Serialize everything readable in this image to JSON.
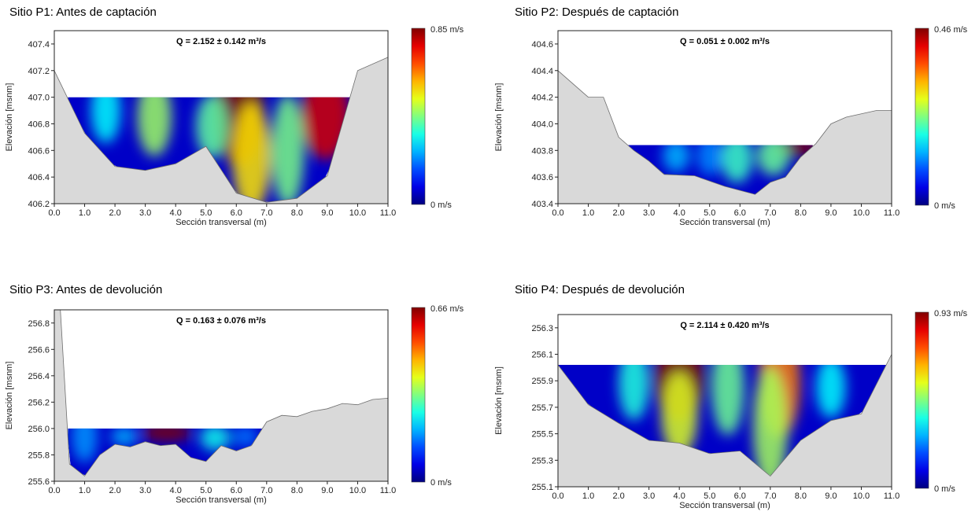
{
  "chart_data": [
    {
      "type": "heatmap",
      "title": "Sitio P1: Antes de captación",
      "discharge_label": "Q = 2.152 ± 0.142 m³/s",
      "xlabel": "Sección transversal (m)",
      "ylabel": "Elevación [msnm]",
      "xlim": [
        0,
        11
      ],
      "ylim": [
        406.2,
        407.5
      ],
      "xticks": [
        "0.0",
        "1.0",
        "2.0",
        "3.0",
        "4.0",
        "5.0",
        "6.0",
        "7.0",
        "8.0",
        "9.0",
        "10.0",
        "11.0"
      ],
      "yticks": [
        "406.2",
        "406.4",
        "406.6",
        "406.8",
        "407.0",
        "407.2",
        "407.4"
      ],
      "water_surface": 407.0,
      "wet_x_range": [
        0.45,
        9.75
      ],
      "bed_profile": [
        [
          0,
          407.2
        ],
        [
          1,
          406.73
        ],
        [
          2,
          406.48
        ],
        [
          3,
          406.45
        ],
        [
          4,
          406.5
        ],
        [
          5,
          406.63
        ],
        [
          6,
          406.28
        ],
        [
          7,
          406.21
        ],
        [
          8,
          406.24
        ],
        [
          9,
          406.41
        ],
        [
          10,
          407.2
        ],
        [
          11,
          407.3
        ]
      ],
      "velocity_max": 0.85,
      "velocity_max_label": "0.85 m/s",
      "velocity_min_label": "0 m/s",
      "velocity_hotspots": [
        [
          6.1,
          406.88,
          0.85
        ],
        [
          8.95,
          406.86,
          0.78
        ],
        [
          3.3,
          406.85,
          0.45
        ],
        [
          1.7,
          406.9,
          0.32
        ],
        [
          6.5,
          406.55,
          0.55
        ],
        [
          7.7,
          406.6,
          0.42
        ],
        [
          5.2,
          406.78,
          0.4
        ]
      ]
    },
    {
      "type": "heatmap",
      "title": "Sitio P2: Después de captación",
      "discharge_label": "Q = 0.051 ± 0.002 m³/s",
      "xlabel": "Sección transversal (m)",
      "ylabel": "Elevación [msnm]",
      "xlim": [
        0,
        11
      ],
      "ylim": [
        403.4,
        404.7
      ],
      "xticks": [
        "0.0",
        "1.0",
        "2.0",
        "3.0",
        "4.0",
        "5.0",
        "6.0",
        "7.0",
        "8.0",
        "9.0",
        "10.0",
        "11.0"
      ],
      "yticks": [
        "403.4",
        "403.6",
        "403.8",
        "404.0",
        "404.2",
        "404.4",
        "404.6"
      ],
      "water_surface": 403.84,
      "wet_x_range": [
        2.3,
        8.4
      ],
      "bed_profile": [
        [
          0,
          404.4
        ],
        [
          1,
          404.2
        ],
        [
          1.5,
          404.2
        ],
        [
          2,
          403.9
        ],
        [
          2.5,
          403.8
        ],
        [
          3,
          403.72
        ],
        [
          3.5,
          403.62
        ],
        [
          4.5,
          403.61
        ],
        [
          5.5,
          403.53
        ],
        [
          6.5,
          403.47
        ],
        [
          7,
          403.56
        ],
        [
          7.5,
          403.6
        ],
        [
          8,
          403.75
        ],
        [
          8.5,
          403.85
        ],
        [
          9,
          404.0
        ],
        [
          9.5,
          404.05
        ],
        [
          10.5,
          404.1
        ],
        [
          11,
          404.1
        ]
      ],
      "velocity_max": 0.46,
      "velocity_max_label": "0.46 m/s",
      "velocity_min_label": "0 m/s",
      "velocity_hotspots": [
        [
          7.9,
          403.82,
          0.46
        ],
        [
          7.1,
          403.76,
          0.22
        ],
        [
          5.9,
          403.74,
          0.2
        ],
        [
          3.9,
          403.76,
          0.14
        ],
        [
          5.0,
          403.76,
          0.12
        ]
      ]
    },
    {
      "type": "heatmap",
      "title": "Sitio P3: Antes de devolución",
      "discharge_label": "Q = 0.163 ± 0.076 m³/s",
      "xlabel": "Sección transversal (m)",
      "ylabel": "Elevación [msnm]",
      "xlim": [
        0,
        11
      ],
      "ylim": [
        255.6,
        256.9
      ],
      "xticks": [
        "0.0",
        "1.0",
        "2.0",
        "3.0",
        "4.0",
        "5.0",
        "6.0",
        "7.0",
        "8.0",
        "9.0",
        "10.0",
        "11.0"
      ],
      "yticks": [
        "255.6",
        "255.8",
        "256.0",
        "256.2",
        "256.4",
        "256.6",
        "256.8"
      ],
      "water_surface": 256.0,
      "wet_x_range": [
        0.45,
        6.95
      ],
      "bed_profile": [
        [
          0,
          256.9
        ],
        [
          0.2,
          256.9
        ],
        [
          0.5,
          255.73
        ],
        [
          1,
          255.64
        ],
        [
          1.5,
          255.8
        ],
        [
          2,
          255.88
        ],
        [
          2.5,
          255.86
        ],
        [
          3,
          255.9
        ],
        [
          3.5,
          255.87
        ],
        [
          4,
          255.88
        ],
        [
          4.5,
          255.78
        ],
        [
          5,
          255.75
        ],
        [
          5.5,
          255.87
        ],
        [
          6,
          255.83
        ],
        [
          6.5,
          255.87
        ],
        [
          7,
          256.05
        ],
        [
          7.5,
          256.1
        ],
        [
          8,
          256.09
        ],
        [
          8.5,
          256.13
        ],
        [
          9,
          256.15
        ],
        [
          9.5,
          256.19
        ],
        [
          10,
          256.18
        ],
        [
          10.5,
          256.22
        ],
        [
          11,
          256.23
        ]
      ],
      "velocity_max": 0.66,
      "velocity_max_label": "0.66 m/s",
      "velocity_min_label": "0 m/s",
      "velocity_hotspots": [
        [
          3.7,
          255.97,
          0.66
        ],
        [
          5.3,
          255.93,
          0.26
        ],
        [
          2.3,
          255.94,
          0.2
        ],
        [
          1.0,
          255.94,
          0.18
        ],
        [
          6.3,
          255.94,
          0.16
        ]
      ]
    },
    {
      "type": "heatmap",
      "title": "Sitio P4: Después de devolución",
      "discharge_label": "Q = 2.114 ± 0.420 m³/s",
      "xlabel": "Sección transversal (m)",
      "ylabel": "Elevación [msnm]",
      "xlim": [
        0,
        11
      ],
      "ylim": [
        255.1,
        256.4
      ],
      "xticks": [
        "0.0",
        "1.0",
        "2.0",
        "3.0",
        "4.0",
        "5.0",
        "6.0",
        "7.0",
        "8.0",
        "9.0",
        "10.0",
        "11.0"
      ],
      "yticks": [
        "255.1",
        "255.3",
        "255.5",
        "255.7",
        "255.9",
        "256.1",
        "256.3"
      ],
      "water_surface": 256.02,
      "wet_x_range": [
        0.0,
        11.0
      ],
      "bed_profile": [
        [
          0,
          256.02
        ],
        [
          1,
          255.72
        ],
        [
          2,
          255.58
        ],
        [
          3,
          255.45
        ],
        [
          4,
          255.43
        ],
        [
          5,
          255.35
        ],
        [
          6,
          255.37
        ],
        [
          7,
          255.18
        ],
        [
          8,
          255.45
        ],
        [
          9,
          255.6
        ],
        [
          10,
          255.65
        ],
        [
          11,
          256.1
        ]
      ],
      "velocity_max": 0.93,
      "velocity_max_label": "0.93 m/s",
      "velocity_min_label": "0 m/s",
      "velocity_hotspots": [
        [
          4.0,
          255.92,
          0.93
        ],
        [
          7.3,
          255.88,
          0.7
        ],
        [
          4.0,
          255.65,
          0.55
        ],
        [
          7.0,
          255.55,
          0.5
        ],
        [
          5.6,
          255.85,
          0.45
        ],
        [
          2.5,
          255.88,
          0.38
        ],
        [
          9.0,
          255.85,
          0.35
        ]
      ]
    }
  ],
  "colors": {
    "terrain_fill": "#d9d9d9",
    "terrain_stroke": "#6e6e6e",
    "colormap": "jet"
  }
}
